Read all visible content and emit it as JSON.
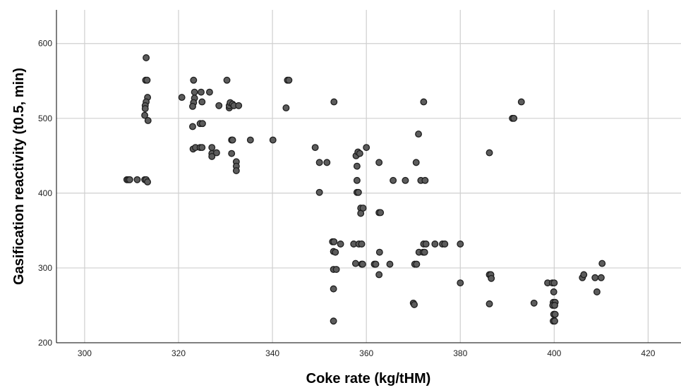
{
  "colors": {
    "point_fill": "#5c5c5c",
    "point_edge": "#1e1e1e",
    "grid": "#cfcfcf",
    "background": "#ffffff"
  },
  "chart_data": {
    "type": "scatter",
    "title": "",
    "xlabel": "Coke rate (kg/tHM)",
    "ylabel": "Gasification reactivity (t0.5, min)",
    "xlim": [
      294,
      427
    ],
    "ylim": [
      200,
      645
    ],
    "xticks": [
      "300",
      "320",
      "340",
      "360",
      "380",
      "400",
      "420"
    ],
    "yticks": [
      "200",
      "300",
      "400",
      "500",
      "600"
    ],
    "grid": true,
    "legend": "none",
    "series": [
      {
        "points": [
          [
            309,
            418
          ],
          [
            309.3,
            418
          ],
          [
            309.6,
            418
          ],
          [
            311.2,
            418
          ],
          [
            312.8,
            418
          ],
          [
            313.1,
            418
          ],
          [
            313.4,
            415
          ],
          [
            313.1,
            581
          ],
          [
            313,
            551
          ],
          [
            313.3,
            551
          ],
          [
            313.4,
            528
          ],
          [
            313.1,
            522
          ],
          [
            312.9,
            517
          ],
          [
            312.9,
            513
          ],
          [
            312.8,
            504
          ],
          [
            313.5,
            497
          ],
          [
            320.7,
            528
          ],
          [
            323.2,
            551
          ],
          [
            323.4,
            535
          ],
          [
            323.4,
            527
          ],
          [
            323.2,
            521
          ],
          [
            323,
            516
          ],
          [
            323,
            489
          ],
          [
            323.1,
            459
          ],
          [
            323.6,
            461
          ],
          [
            324.6,
            461
          ],
          [
            325,
            461
          ],
          [
            324.6,
            493
          ],
          [
            325.1,
            493
          ],
          [
            324.8,
            535
          ],
          [
            325,
            522
          ],
          [
            326.6,
            535
          ],
          [
            327.1,
            461
          ],
          [
            327.1,
            453
          ],
          [
            327.1,
            449
          ],
          [
            328.1,
            454
          ],
          [
            328.6,
            517
          ],
          [
            330.3,
            551
          ],
          [
            330.8,
            514
          ],
          [
            330.8,
            517
          ],
          [
            331,
            521
          ],
          [
            331.5,
            519
          ],
          [
            331.8,
            517
          ],
          [
            332.8,
            517
          ],
          [
            331.3,
            471
          ],
          [
            331.5,
            471
          ],
          [
            331.3,
            453
          ],
          [
            332.3,
            442
          ],
          [
            332.3,
            436
          ],
          [
            332.3,
            430
          ],
          [
            335.3,
            471
          ],
          [
            340.1,
            471
          ],
          [
            342.9,
            514
          ],
          [
            343.2,
            551
          ],
          [
            343.5,
            551
          ],
          [
            349.1,
            461
          ],
          [
            350,
            441
          ],
          [
            350,
            401
          ],
          [
            351.6,
            441
          ],
          [
            352.8,
            335
          ],
          [
            353,
            322
          ],
          [
            353,
            298
          ],
          [
            353,
            272
          ],
          [
            353,
            229
          ],
          [
            353.1,
            522
          ],
          [
            353.1,
            335
          ],
          [
            353.4,
            321
          ],
          [
            353.6,
            298
          ],
          [
            354.5,
            332
          ],
          [
            357.3,
            332
          ],
          [
            357.7,
            306
          ],
          [
            357.8,
            450
          ],
          [
            358,
            436
          ],
          [
            358,
            417
          ],
          [
            358,
            401
          ],
          [
            358.2,
            455
          ],
          [
            358.4,
            332
          ],
          [
            358.6,
            453
          ],
          [
            358.3,
            401
          ],
          [
            358.8,
            380
          ],
          [
            358.8,
            373
          ],
          [
            359,
            332
          ],
          [
            359,
            305
          ],
          [
            359.2,
            305
          ],
          [
            359.3,
            380
          ],
          [
            360,
            461
          ],
          [
            361.7,
            305
          ],
          [
            362,
            305
          ],
          [
            362.7,
            441
          ],
          [
            362.7,
            374
          ],
          [
            363,
            374
          ],
          [
            362.8,
            321
          ],
          [
            362.7,
            291
          ],
          [
            365,
            305
          ],
          [
            365.7,
            417
          ],
          [
            368.3,
            417
          ],
          [
            370,
            253
          ],
          [
            370.2,
            251
          ],
          [
            370.3,
            305
          ],
          [
            370.7,
            305
          ],
          [
            370.6,
            441
          ],
          [
            371.1,
            479
          ],
          [
            371.2,
            321
          ],
          [
            371.6,
            417
          ],
          [
            372.2,
            522
          ],
          [
            372.2,
            332
          ],
          [
            372.1,
            321
          ],
          [
            372.7,
            332
          ],
          [
            372.4,
            321
          ],
          [
            372.5,
            417
          ],
          [
            374.6,
            332
          ],
          [
            376.2,
            332
          ],
          [
            376.7,
            332
          ],
          [
            380,
            332
          ],
          [
            380,
            280
          ],
          [
            386.2,
            454
          ],
          [
            386.2,
            252
          ],
          [
            386.2,
            291
          ],
          [
            386.5,
            291
          ],
          [
            386.6,
            286
          ],
          [
            391.1,
            500
          ],
          [
            391.4,
            500
          ],
          [
            393,
            522
          ],
          [
            395.7,
            253
          ],
          [
            398.6,
            280
          ],
          [
            399.6,
            280
          ],
          [
            400,
            280
          ],
          [
            399.9,
            268
          ],
          [
            399.8,
            254
          ],
          [
            400.2,
            254
          ],
          [
            399.7,
            250
          ],
          [
            400.1,
            250
          ],
          [
            399.9,
            238
          ],
          [
            400.2,
            238
          ],
          [
            399.8,
            229
          ],
          [
            400.1,
            229
          ],
          [
            406,
            287
          ],
          [
            406.3,
            291
          ],
          [
            408.7,
            287
          ],
          [
            409.1,
            268
          ],
          [
            410,
            287
          ],
          [
            410.2,
            306
          ]
        ]
      }
    ]
  }
}
